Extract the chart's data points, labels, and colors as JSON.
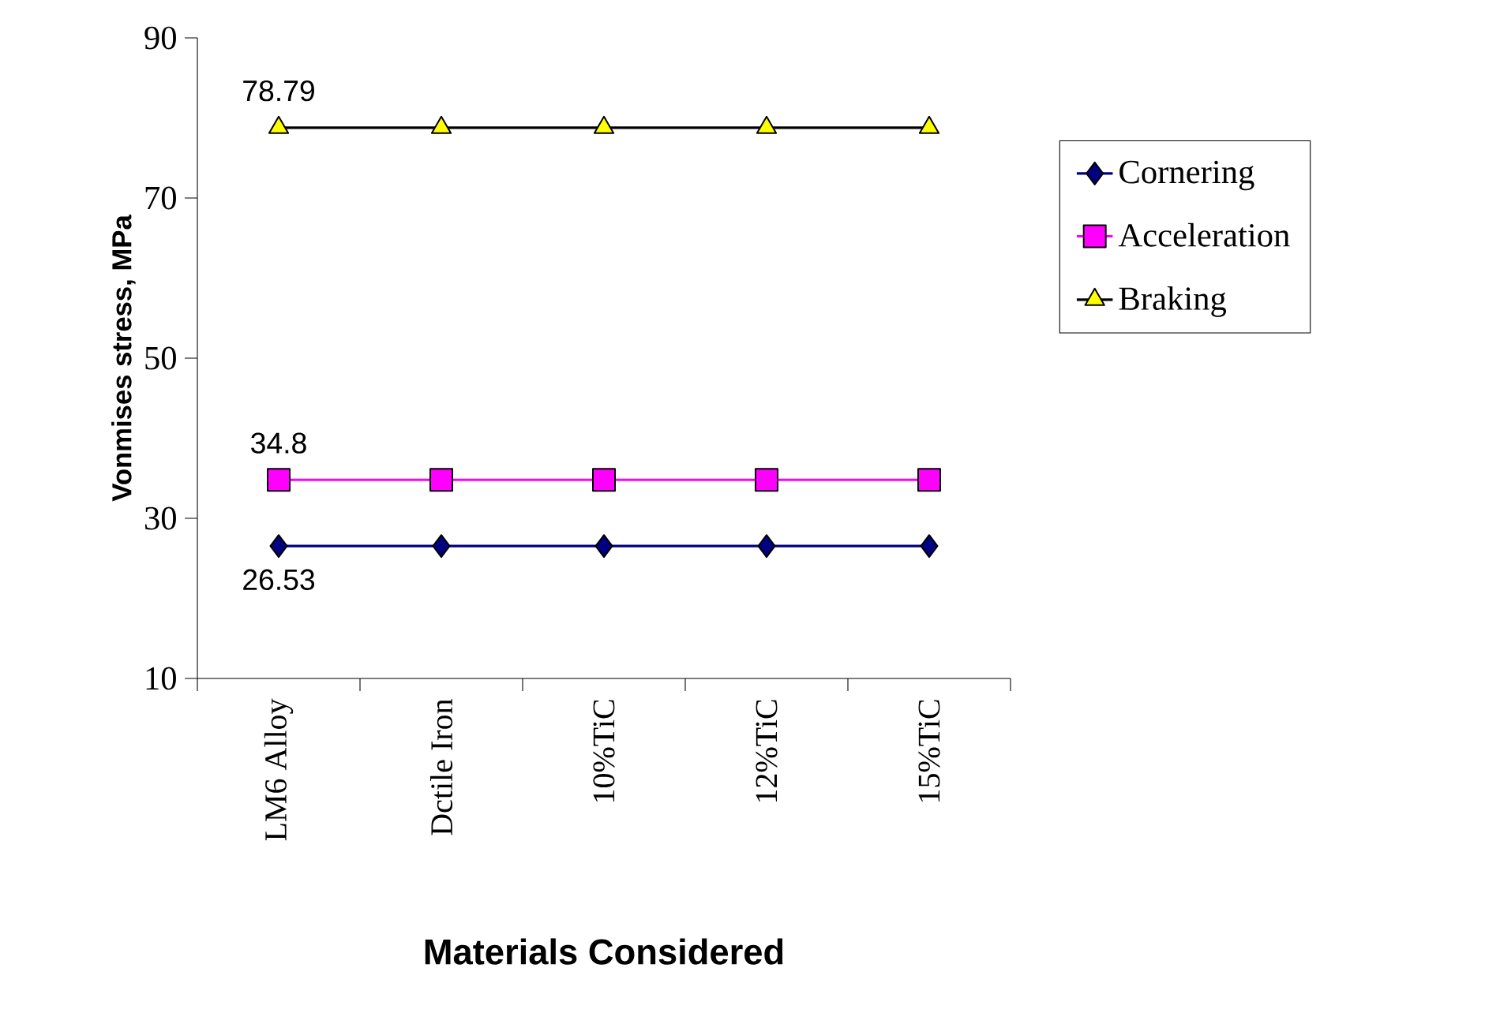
{
  "chart_data": {
    "type": "line",
    "xlabel": "Materials Considered",
    "ylabel": "Vonmises stress, MPa",
    "categories": [
      "LM6 Alloy",
      "Dctile Iron",
      "10%TiC",
      "12%TiC",
      "15%TiC"
    ],
    "ylim": [
      10,
      90
    ],
    "yticks": [
      10,
      30,
      50,
      70,
      90
    ],
    "legend": "right",
    "series": [
      {
        "name": "Cornering",
        "color": "#000080",
        "marker": "diamond",
        "values": [
          26.53,
          26.53,
          26.53,
          26.53,
          26.53
        ],
        "value_labels": [
          "26.53",
          null,
          null,
          null,
          null
        ]
      },
      {
        "name": "Acceleration",
        "color": "#ff00ff",
        "marker": "square",
        "values": [
          34.8,
          34.8,
          34.8,
          34.8,
          34.8
        ],
        "value_labels": [
          "34.8",
          null,
          null,
          null,
          null
        ]
      },
      {
        "name": "Braking",
        "color": "#ffff00",
        "marker": "triangle",
        "values": [
          78.79,
          78.79,
          78.79,
          78.79,
          78.79
        ],
        "value_labels": [
          "78.79",
          null,
          null,
          null,
          null
        ]
      }
    ]
  }
}
